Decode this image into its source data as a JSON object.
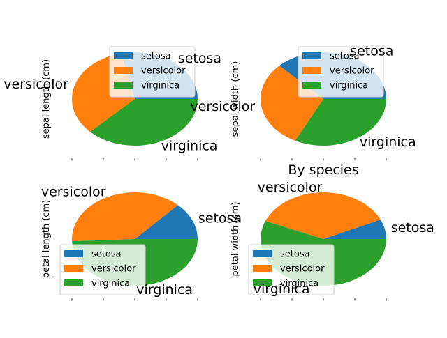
{
  "title": "By species",
  "colors": {
    "setosa": "#1f77b4",
    "versicolor": "#ff7f0e",
    "virginica": "#2ca02c"
  },
  "chart_data": [
    {
      "type": "pie",
      "ylabel": "sepal length (cm)",
      "categories": [
        "setosa",
        "versicolor",
        "virginica"
      ],
      "values": [
        250.3,
        296.8,
        329.4
      ],
      "legend": "upper right"
    },
    {
      "type": "pie",
      "ylabel": "sepal width (cm)",
      "categories": [
        "setosa",
        "versicolor",
        "virginica"
      ],
      "values": [
        171.4,
        138.5,
        148.7
      ],
      "legend": "upper right"
    },
    {
      "type": "pie",
      "ylabel": "petal length (cm)",
      "categories": [
        "setosa",
        "versicolor",
        "virginica"
      ],
      "values": [
        73.1,
        213.0,
        277.6
      ],
      "legend": "lower left"
    },
    {
      "type": "pie",
      "ylabel": "petal width (cm)",
      "categories": [
        "setosa",
        "versicolor",
        "virginica"
      ],
      "values": [
        12.3,
        66.3,
        101.3
      ],
      "legend": "lower left"
    }
  ]
}
